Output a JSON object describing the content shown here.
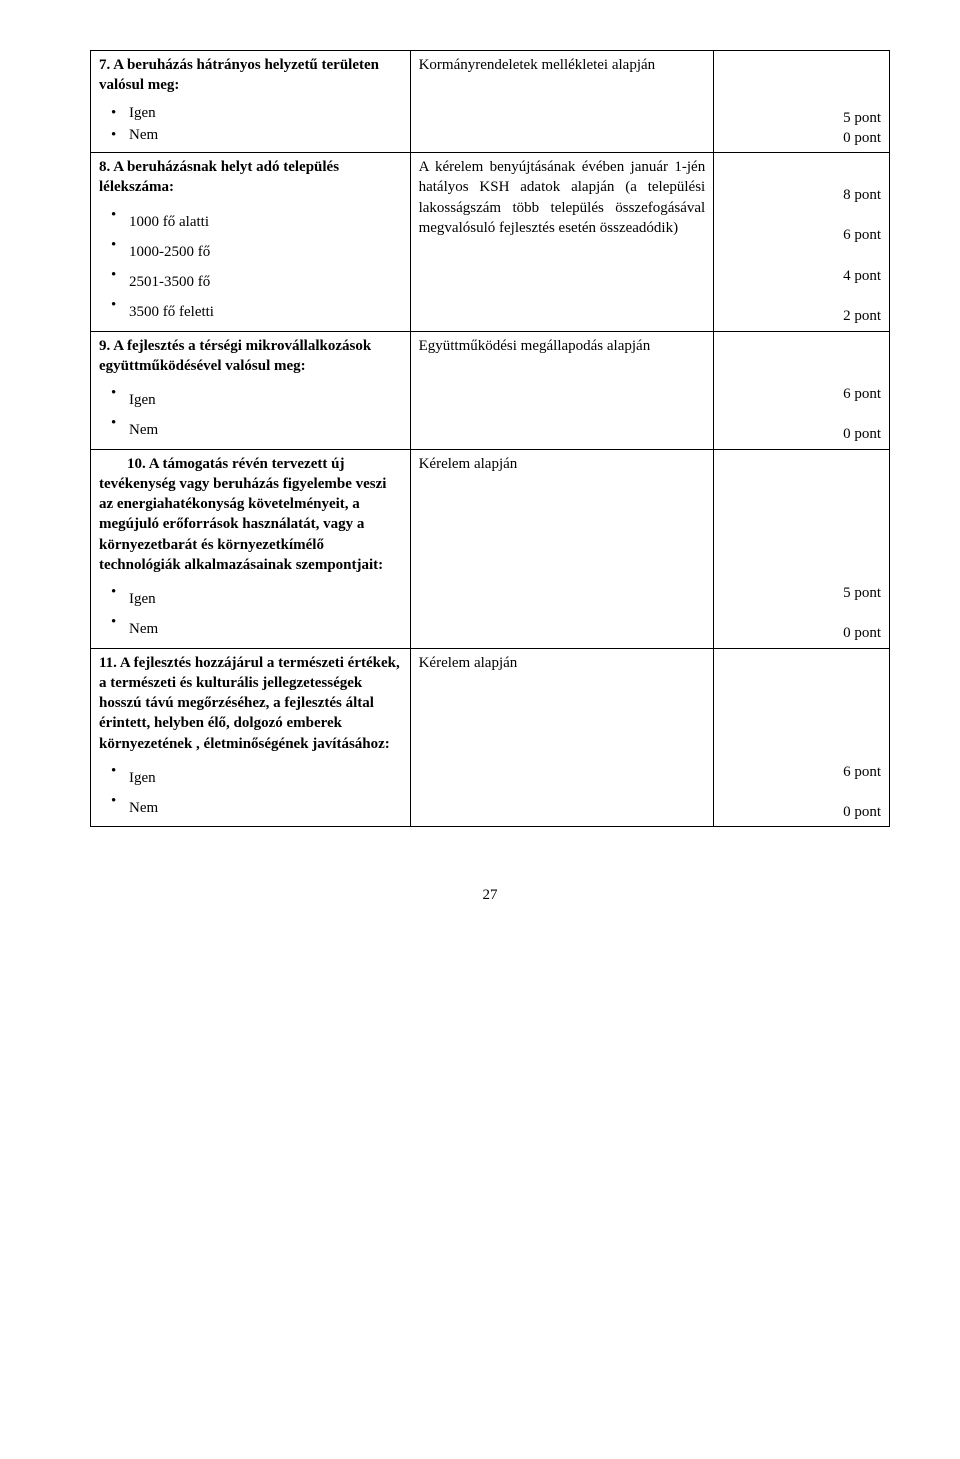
{
  "table": {
    "rows": [
      {
        "col1": {
          "heading_prefix": "7. ",
          "heading": "A beruházás hátrányos helyzetű területen valósul meg:",
          "bullets": [
            "Igen",
            "Nem"
          ]
        },
        "col2": "Kormányrendeletek mellékletei alapján",
        "col2_justify": true,
        "col3": "5 pont\n0 pont",
        "col3_align_bottom": true
      },
      {
        "col1": {
          "heading_prefix": "8. ",
          "heading": "A beruházásnak helyt adó település lélekszáma:",
          "bullets": [
            "1000 fő alatti",
            "1000-2500 fő",
            "2501-3500 fő",
            "3500 fő feletti"
          ],
          "bullet_spacing": true
        },
        "col2": "A kérelem benyújtásának évében január 1-jén hatályos KSH adatok alapján (a települési lakosságszám több település összefogásával megvalósuló fejlesztés esetén összeadódik)",
        "col2_justify": true,
        "col3": "8 pont\n\n6 pont\n\n4 pont\n\n2 pont",
        "col3_align_bottom": true
      },
      {
        "col1": {
          "heading_prefix": "9. ",
          "heading": "A fejlesztés a térségi mikrovállalkozások együttműködésével valósul meg:",
          "bullets": [
            "Igen",
            "Nem"
          ],
          "bullet_spacing": true
        },
        "col2": "Együttműködési megállapodás alapján",
        "col2_justify": true,
        "col3": "6 pont\n\n0 pont",
        "col3_align_bottom": true
      },
      {
        "col1": {
          "heading_prefix": "10. ",
          "heading_indent": true,
          "heading": "A támogatás révén tervezett új tevékenység vagy beruházás figyelembe veszi az energiahatékonyság követelményeit, a megújuló erőforrások használatát, vagy a környezetbarát és környezetkímélő technológiák alkalmazásainak szempontjait:",
          "bullets": [
            "Igen",
            "Nem"
          ],
          "bullet_spacing": true
        },
        "col2": "Kérelem alapján",
        "col2_justify": false,
        "col3": "5 pont\n\n0 pont",
        "col3_align_bottom": true
      },
      {
        "col1": {
          "heading_prefix": "11. ",
          "heading": "A fejlesztés hozzájárul a természeti értékek, a természeti és kulturális jellegzetességek hosszú távú megőrzéséhez, a fejlesztés által érintett,  helyben élő, dolgozó emberek környezetének , életminőségének javításához:",
          "bullets": [
            "Igen",
            "Nem"
          ],
          "bullet_spacing": true
        },
        "col2": "Kérelem alapján",
        "col2_justify": false,
        "col3": "\n6 pont\n\n0 pont",
        "col3_align_bottom": true
      }
    ]
  },
  "page_number": "27"
}
